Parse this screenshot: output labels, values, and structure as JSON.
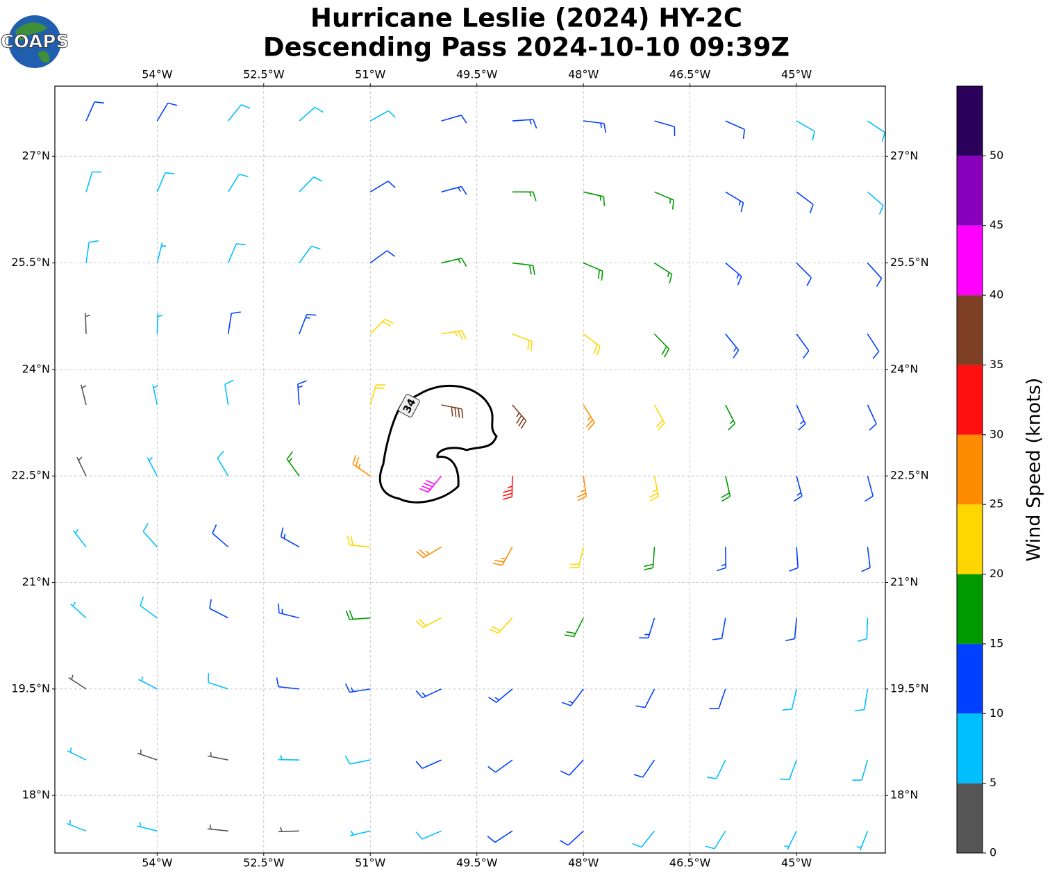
{
  "chart_data": {
    "type": "barbs",
    "title": "Hurricane Leslie (2024) HY-2C",
    "subtitle": "Descending Pass 2024-10-10 09:39Z",
    "logo_text": "COAPS",
    "colorbar_label": "Wind Speed (knots)",
    "contour_label": "34",
    "xlim": [
      -55.44,
      -43.75
    ],
    "ylim": [
      17.19,
      27.99
    ],
    "xticks": [
      {
        "value": -54,
        "label": "54°W"
      },
      {
        "value": -52.5,
        "label": "52.5°W"
      },
      {
        "value": -51,
        "label": "51°W"
      },
      {
        "value": -49.5,
        "label": "49.5°W"
      },
      {
        "value": -48,
        "label": "48°W"
      },
      {
        "value": -46.5,
        "label": "46.5°W"
      },
      {
        "value": -45,
        "label": "45°W"
      }
    ],
    "yticks": [
      {
        "value": 18,
        "label": "18°N"
      },
      {
        "value": 19.5,
        "label": "19.5°N"
      },
      {
        "value": 21,
        "label": "21°N"
      },
      {
        "value": 22.5,
        "label": "22.5°N"
      },
      {
        "value": 24,
        "label": "24°N"
      },
      {
        "value": 25.5,
        "label": "25.5°N"
      },
      {
        "value": 27,
        "label": "27°N"
      }
    ],
    "grid": true,
    "colorbar_lim": [
      0,
      55
    ],
    "colorbar_bounds": [
      0,
      5,
      10,
      15,
      20,
      25,
      30,
      35,
      40,
      45,
      50,
      55
    ],
    "colorbar_colors": [
      "#555555",
      "#00bfff",
      "#0040ff",
      "#009900",
      "#ffd700",
      "#ff8c00",
      "#ff1010",
      "#7f3f25",
      "#ff00ff",
      "#8800bb",
      "#2a005a"
    ],
    "colorbar_ticks": [
      0,
      5,
      10,
      15,
      20,
      25,
      30,
      35,
      40,
      45,
      50
    ],
    "lon": [
      -55,
      -54,
      -53,
      -52,
      -51,
      -50,
      -49,
      -48,
      -47,
      -46,
      -45,
      -44
    ],
    "lat": [
      27.5,
      26.5,
      25.5,
      24.5,
      23.5,
      22.5,
      21.5,
      20.5,
      19.5,
      18.5,
      17.5
    ],
    "speed": [
      [
        12,
        12,
        8,
        8,
        9,
        12,
        13,
        13,
        12,
        12,
        9,
        8
      ],
      [
        8,
        8,
        9,
        9,
        11,
        13,
        15,
        16,
        16,
        13,
        11,
        9
      ],
      [
        8,
        7,
        8,
        9,
        12,
        16,
        18,
        18,
        17,
        14,
        12,
        10
      ],
      [
        4,
        6,
        10,
        14,
        20,
        24,
        22,
        22,
        18,
        14,
        12,
        10
      ],
      [
        3,
        5,
        9,
        14,
        22,
        38,
        35,
        26,
        22,
        17,
        13,
        11
      ],
      [
        3,
        5,
        9,
        15,
        25,
        40,
        33,
        25,
        23,
        18,
        13,
        11
      ],
      [
        6,
        8,
        10,
        14,
        20,
        27,
        26,
        22,
        18,
        13,
        11,
        10
      ],
      [
        6,
        8,
        10,
        13,
        18,
        20,
        20,
        18,
        14,
        12,
        10,
        9
      ],
      [
        4,
        6,
        8,
        11,
        13,
        14,
        14,
        13,
        12,
        11,
        9,
        8
      ],
      [
        6,
        3,
        4,
        5,
        9,
        11,
        12,
        12,
        11,
        9,
        8,
        8
      ],
      [
        7,
        5,
        3,
        4,
        7,
        9,
        10,
        10,
        9,
        8,
        7,
        7
      ]
    ],
    "direction": [
      [
        24,
        31,
        39,
        49,
        61,
        74,
        86,
        97,
        106,
        114,
        120,
        124
      ],
      [
        17,
        23,
        32,
        44,
        59,
        75,
        90,
        103,
        113,
        121,
        127,
        131
      ],
      [
        8,
        14,
        23,
        36,
        54,
        77,
        97,
        113,
        123,
        130,
        135,
        138
      ],
      [
        358,
        2,
        9,
        21,
        45,
        81,
        111,
        127,
        136,
        141,
        144,
        147
      ],
      [
        346,
        348,
        351,
        356,
        16,
        101,
        139,
        148,
        151,
        153,
        155,
        155
      ],
      [
        334,
        332,
        329,
        324,
        304,
        219,
        181,
        172,
        169,
        167,
        165,
        165
      ],
      [
        322,
        318,
        311,
        299,
        275,
        239,
        209,
        193,
        184,
        179,
        176,
        173
      ],
      [
        312,
        306,
        297,
        284,
        266,
        243,
        223,
        207,
        197,
        190,
        185,
        182
      ],
      [
        303,
        297,
        288,
        276,
        261,
        245,
        230,
        217,
        207,
        199,
        193,
        189
      ],
      [
        296,
        289,
        281,
        271,
        259,
        246,
        234,
        223,
        214,
        206,
        200,
        196
      ],
      [
        291,
        284,
        276,
        268,
        257,
        247,
        237,
        227,
        219,
        212,
        206,
        201
      ]
    ]
  }
}
